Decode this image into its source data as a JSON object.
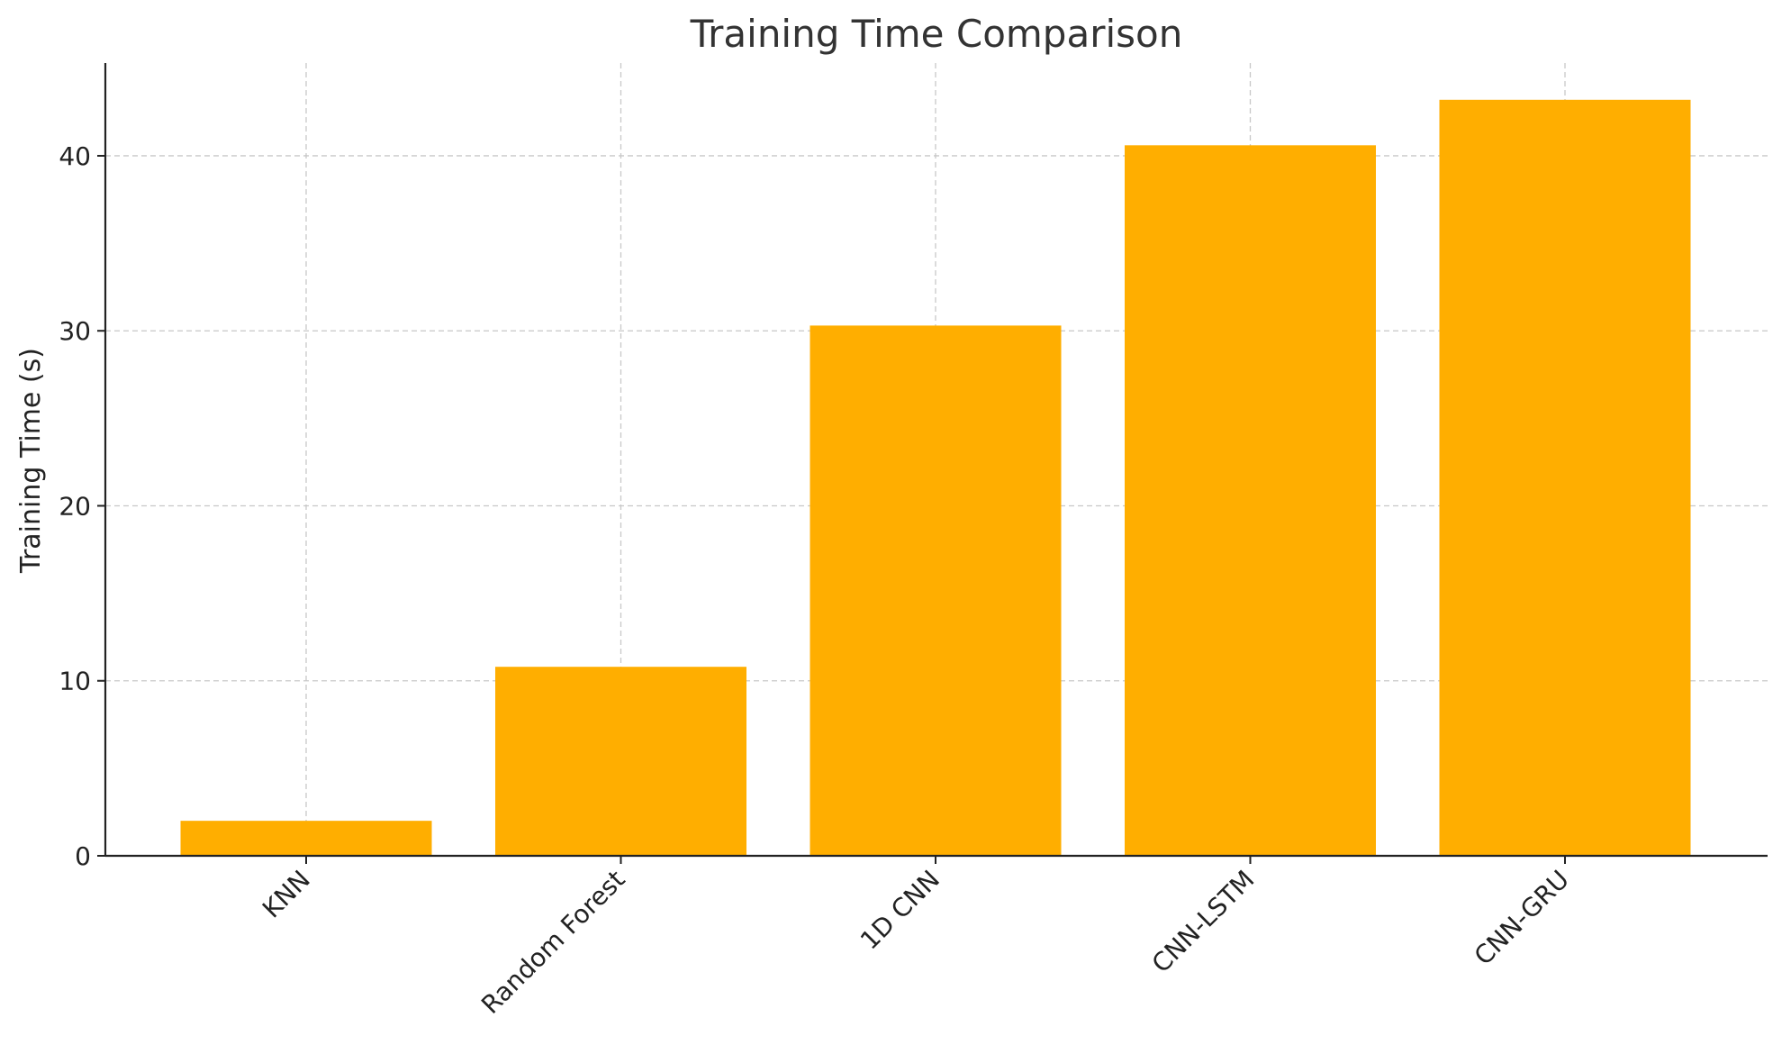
{
  "chart_data": {
    "type": "bar",
    "title": "Training Time Comparison",
    "xlabel": "",
    "ylabel": "Training Time (s)",
    "categories": [
      "KNN",
      "Random Forest",
      "1D CNN",
      "CNN-LSTM",
      "CNN-GRU"
    ],
    "values": [
      2.0,
      10.8,
      30.3,
      40.6,
      43.2
    ],
    "ylim": [
      0,
      45.3
    ],
    "yticks": [
      0,
      10,
      20,
      30,
      40
    ],
    "grid": true,
    "bar_color": "#FFAE00"
  }
}
